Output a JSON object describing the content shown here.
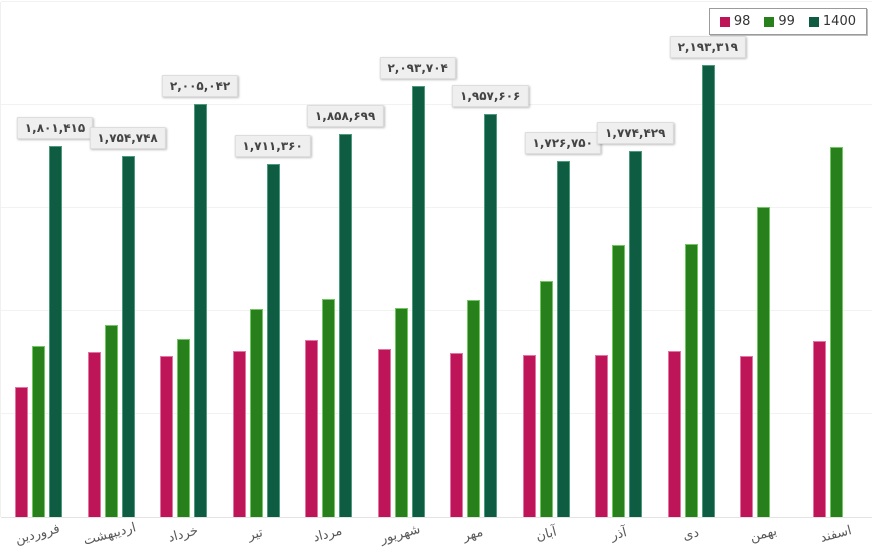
{
  "chart_data": {
    "type": "bar",
    "title": "",
    "xlabel": "",
    "ylabel": "",
    "ylim": [
      0,
      2500000
    ],
    "gridline_interval": 500000,
    "grid": true,
    "legend_position": "top-right",
    "categories": [
      "فروردین",
      "اردیبهشت",
      "خرداد",
      "تیر",
      "مرداد",
      "شهریور",
      "مهر",
      "آبان",
      "آذر",
      "دی",
      "بهمن",
      "اسفند"
    ],
    "series": [
      {
        "name": "98",
        "color": "#be1458",
        "border_color": "#e275a4",
        "values": [
          630000,
          800000,
          780000,
          805000,
          860000,
          815000,
          795000,
          785000,
          785000,
          805000,
          780000,
          855000
        ]
      },
      {
        "name": "99",
        "color": "#27801c",
        "border_color": "#71c761",
        "values": [
          830000,
          930000,
          865000,
          1010000,
          1060000,
          1015000,
          1055000,
          1145000,
          1320000,
          1325000,
          1505000,
          1795000
        ]
      },
      {
        "name": "1400",
        "color": "#0e5c41",
        "border_color": "#4e9b7c",
        "values": [
          1801415,
          1754748,
          2005042,
          1711360,
          1858699,
          2093704,
          1957606,
          1726750,
          1774429,
          2193319,
          null,
          null
        ],
        "data_labels": [
          "۱,۸۰۱,۴۱۵",
          "۱,۷۵۴,۷۴۸",
          "۲,۰۰۵,۰۴۲",
          "۱,۷۱۱,۳۶۰",
          "۱,۸۵۸,۶۹۹",
          "۲,۰۹۳,۷۰۴",
          "۱,۹۵۷,۶۰۶",
          "۱,۷۲۶,۷۵۰",
          "۱,۷۷۴,۴۲۹",
          "۲,۱۹۳,۳۱۹",
          null,
          null
        ]
      }
    ]
  }
}
